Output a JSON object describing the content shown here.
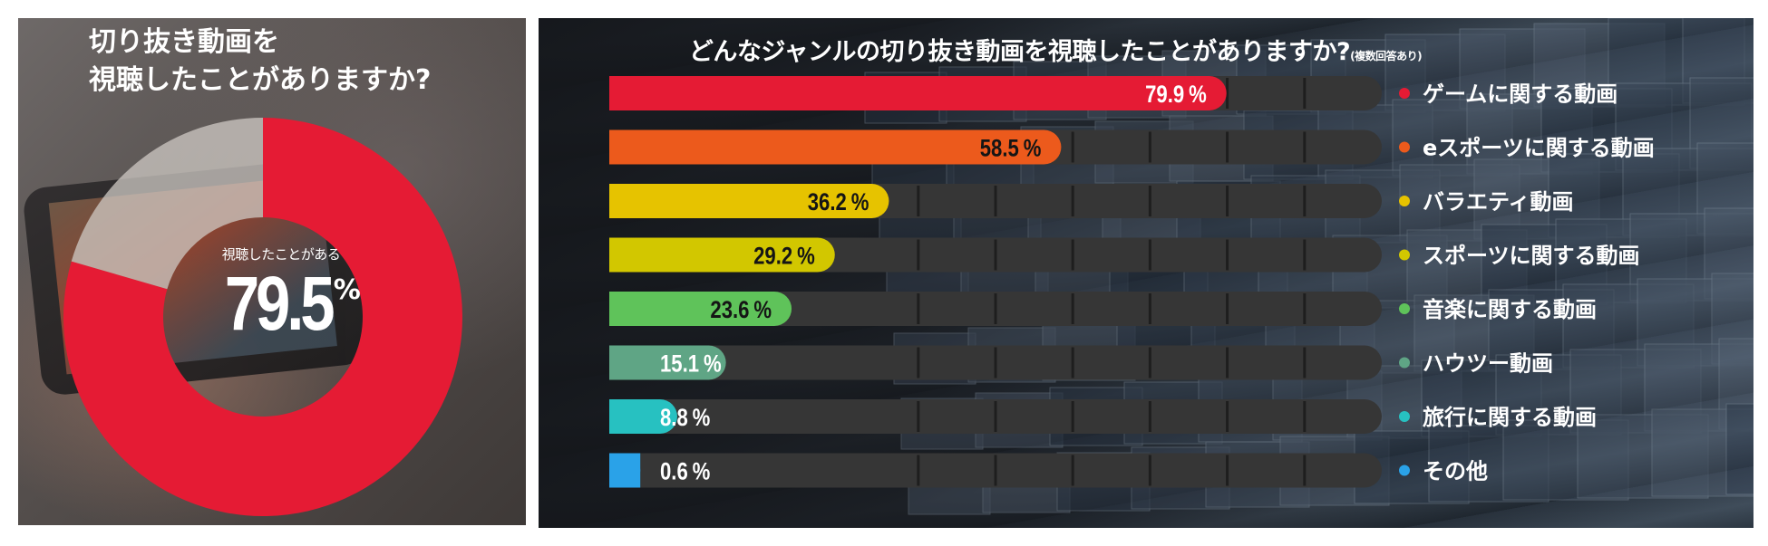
{
  "left": {
    "title": "切り抜き動画を\n視聴したことがありますか?",
    "center_label": "視聴したことがある",
    "value": "79.5",
    "unit": "%"
  },
  "right": {
    "title": "どんなジャンルの切り抜き動画を視聴したことがありますか?",
    "note": "(複数回答あり)"
  },
  "chart_data": [
    {
      "type": "pie",
      "title": "切り抜き動画を視聴したことがありますか?",
      "categories": [
        "視聴したことがある",
        ""
      ],
      "values": [
        79.5,
        20.5
      ],
      "colors": [
        "#e51b34",
        "#cfc9c4"
      ],
      "unit": "%"
    },
    {
      "type": "bar",
      "orientation": "horizontal",
      "title": "どんなジャンルの切り抜き動画を視聴したことがありますか?",
      "subtitle": "(複数回答あり)",
      "categories": [
        "ゲームに関する動画",
        "eスポーツに関する動画",
        "バラエティ動画",
        "スポーツに関する動画",
        "音楽に関する動画",
        "ハウツー動画",
        "旅行に関する動画",
        "その他"
      ],
      "values": [
        79.9,
        58.5,
        36.2,
        29.2,
        23.6,
        15.1,
        8.8,
        0.6
      ],
      "value_labels": [
        "79.9",
        "58.5",
        "36.2",
        "29.2",
        "23.6",
        "15.1",
        "8.8",
        "0.6"
      ],
      "unit": "%",
      "colors": [
        "#e51b34",
        "#ec5a1c",
        "#e6c300",
        "#d2c700",
        "#5fc35a",
        "#5fa585",
        "#27c1c1",
        "#2aa2e8"
      ],
      "track_color": "#363636",
      "xlim": [
        0,
        100
      ],
      "grid": true
    }
  ]
}
